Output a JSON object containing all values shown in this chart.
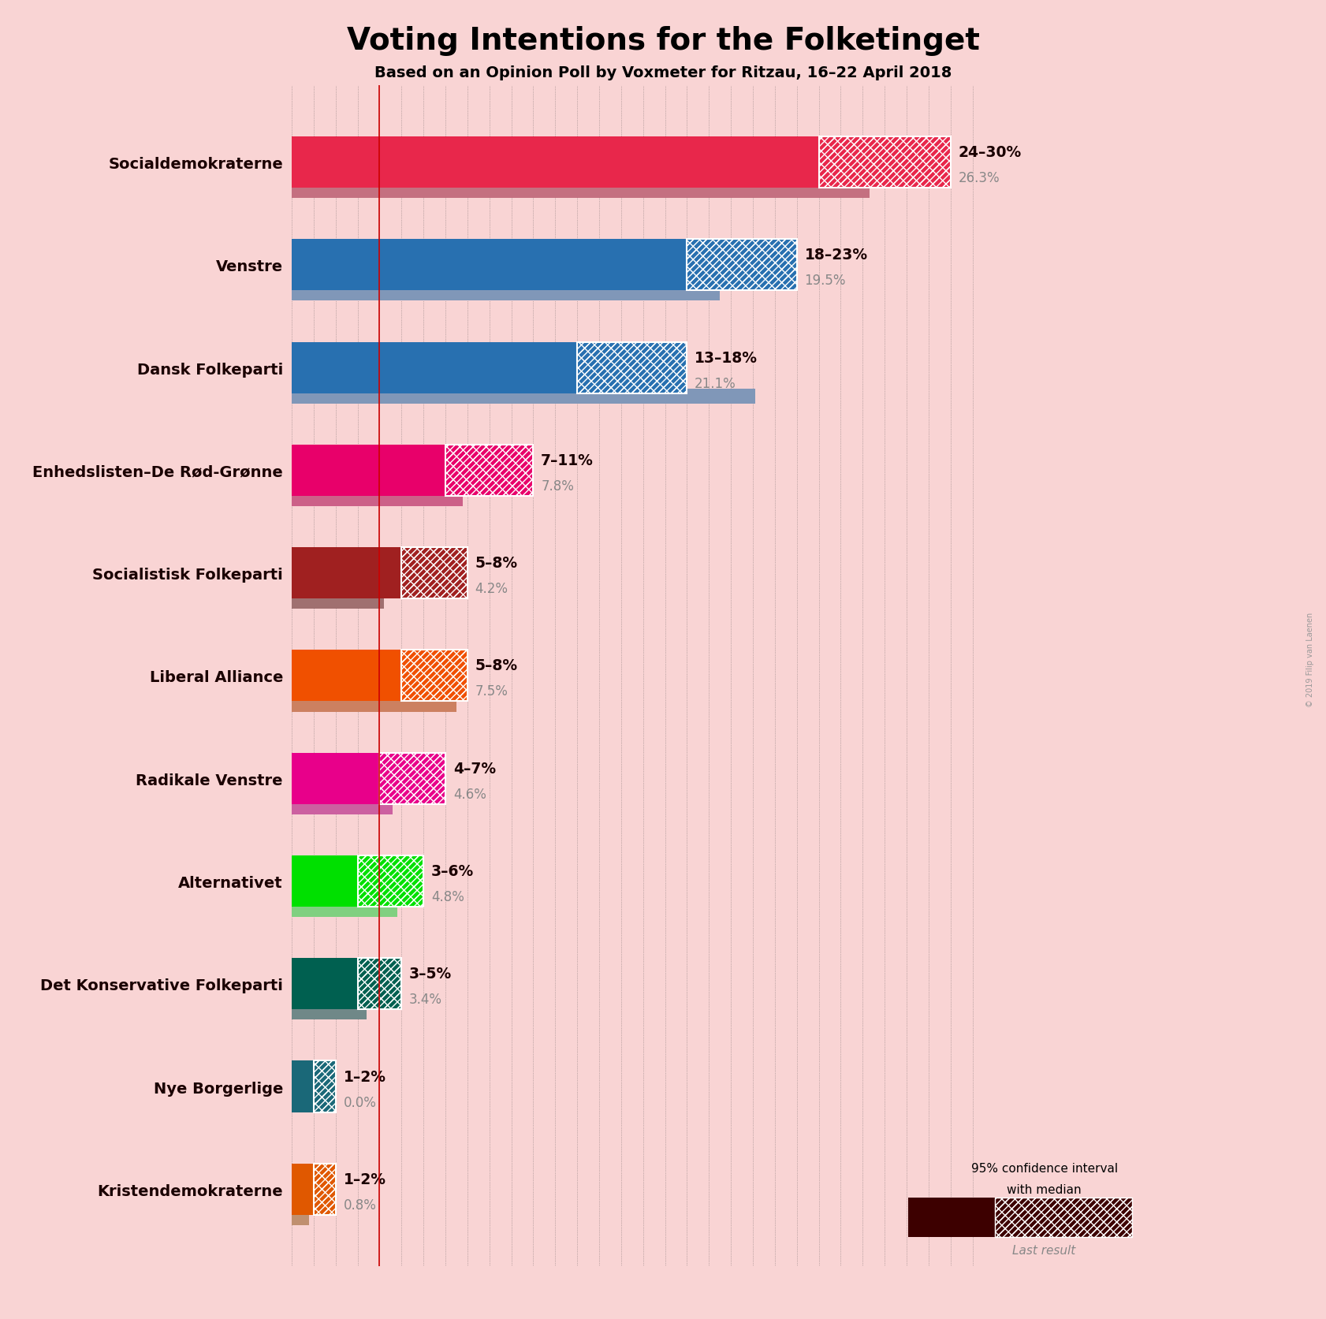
{
  "title": "Voting Intentions for the Folketinget",
  "subtitle": "Based on an Opinion Poll by Voxmeter for Ritzau, 16–22 April 2018",
  "background_color": "#f9d4d4",
  "parties": [
    {
      "name": "Socialdemokraterne",
      "color": "#e8274b",
      "last_color": "#c47080",
      "ci_low": 24,
      "ci_high": 30,
      "last_result": 26.3,
      "label": "24–30%",
      "label2": "26.3%"
    },
    {
      "name": "Venstre",
      "color": "#2870b0",
      "last_color": "#8097b8",
      "ci_low": 18,
      "ci_high": 23,
      "last_result": 19.5,
      "label": "18–23%",
      "label2": "19.5%"
    },
    {
      "name": "Dansk Folkeparti",
      "color": "#2870b0",
      "last_color": "#8097b8",
      "ci_low": 13,
      "ci_high": 18,
      "last_result": 21.1,
      "label": "13–18%",
      "label2": "21.1%"
    },
    {
      "name": "Enhedslisten–De Rød-Grønne",
      "color": "#e8006a",
      "last_color": "#cc6088",
      "ci_low": 7,
      "ci_high": 11,
      "last_result": 7.8,
      "label": "7–11%",
      "label2": "7.8%"
    },
    {
      "name": "Socialistisk Folkeparti",
      "color": "#a02020",
      "last_color": "#a07070",
      "ci_low": 5,
      "ci_high": 8,
      "last_result": 4.2,
      "label": "5–8%",
      "label2": "4.2%"
    },
    {
      "name": "Liberal Alliance",
      "color": "#f05000",
      "last_color": "#cc8060",
      "ci_low": 5,
      "ci_high": 8,
      "last_result": 7.5,
      "label": "5–8%",
      "label2": "7.5%"
    },
    {
      "name": "Radikale Venstre",
      "color": "#e8008a",
      "last_color": "#cc60a0",
      "ci_low": 4,
      "ci_high": 7,
      "last_result": 4.6,
      "label": "4–7%",
      "label2": "4.6%"
    },
    {
      "name": "Alternativet",
      "color": "#00e000",
      "last_color": "#80d080",
      "ci_low": 3,
      "ci_high": 6,
      "last_result": 4.8,
      "label": "3–6%",
      "label2": "4.8%"
    },
    {
      "name": "Det Konservative Folkeparti",
      "color": "#006050",
      "last_color": "#708888",
      "ci_low": 3,
      "ci_high": 5,
      "last_result": 3.4,
      "label": "3–5%",
      "label2": "3.4%"
    },
    {
      "name": "Nye Borgerlige",
      "color": "#1a6878",
      "last_color": "#709098",
      "ci_low": 1,
      "ci_high": 2,
      "last_result": 0.0,
      "label": "1–2%",
      "label2": "0.0%"
    },
    {
      "name": "Kristendemokraterne",
      "color": "#e05800",
      "last_color": "#c09070",
      "ci_low": 1,
      "ci_high": 2,
      "last_result": 0.8,
      "label": "1–2%",
      "label2": "0.8%"
    }
  ],
  "xmax": 32,
  "red_line_x": 4.0,
  "copyright": "© 2019 Filip van Laenen"
}
